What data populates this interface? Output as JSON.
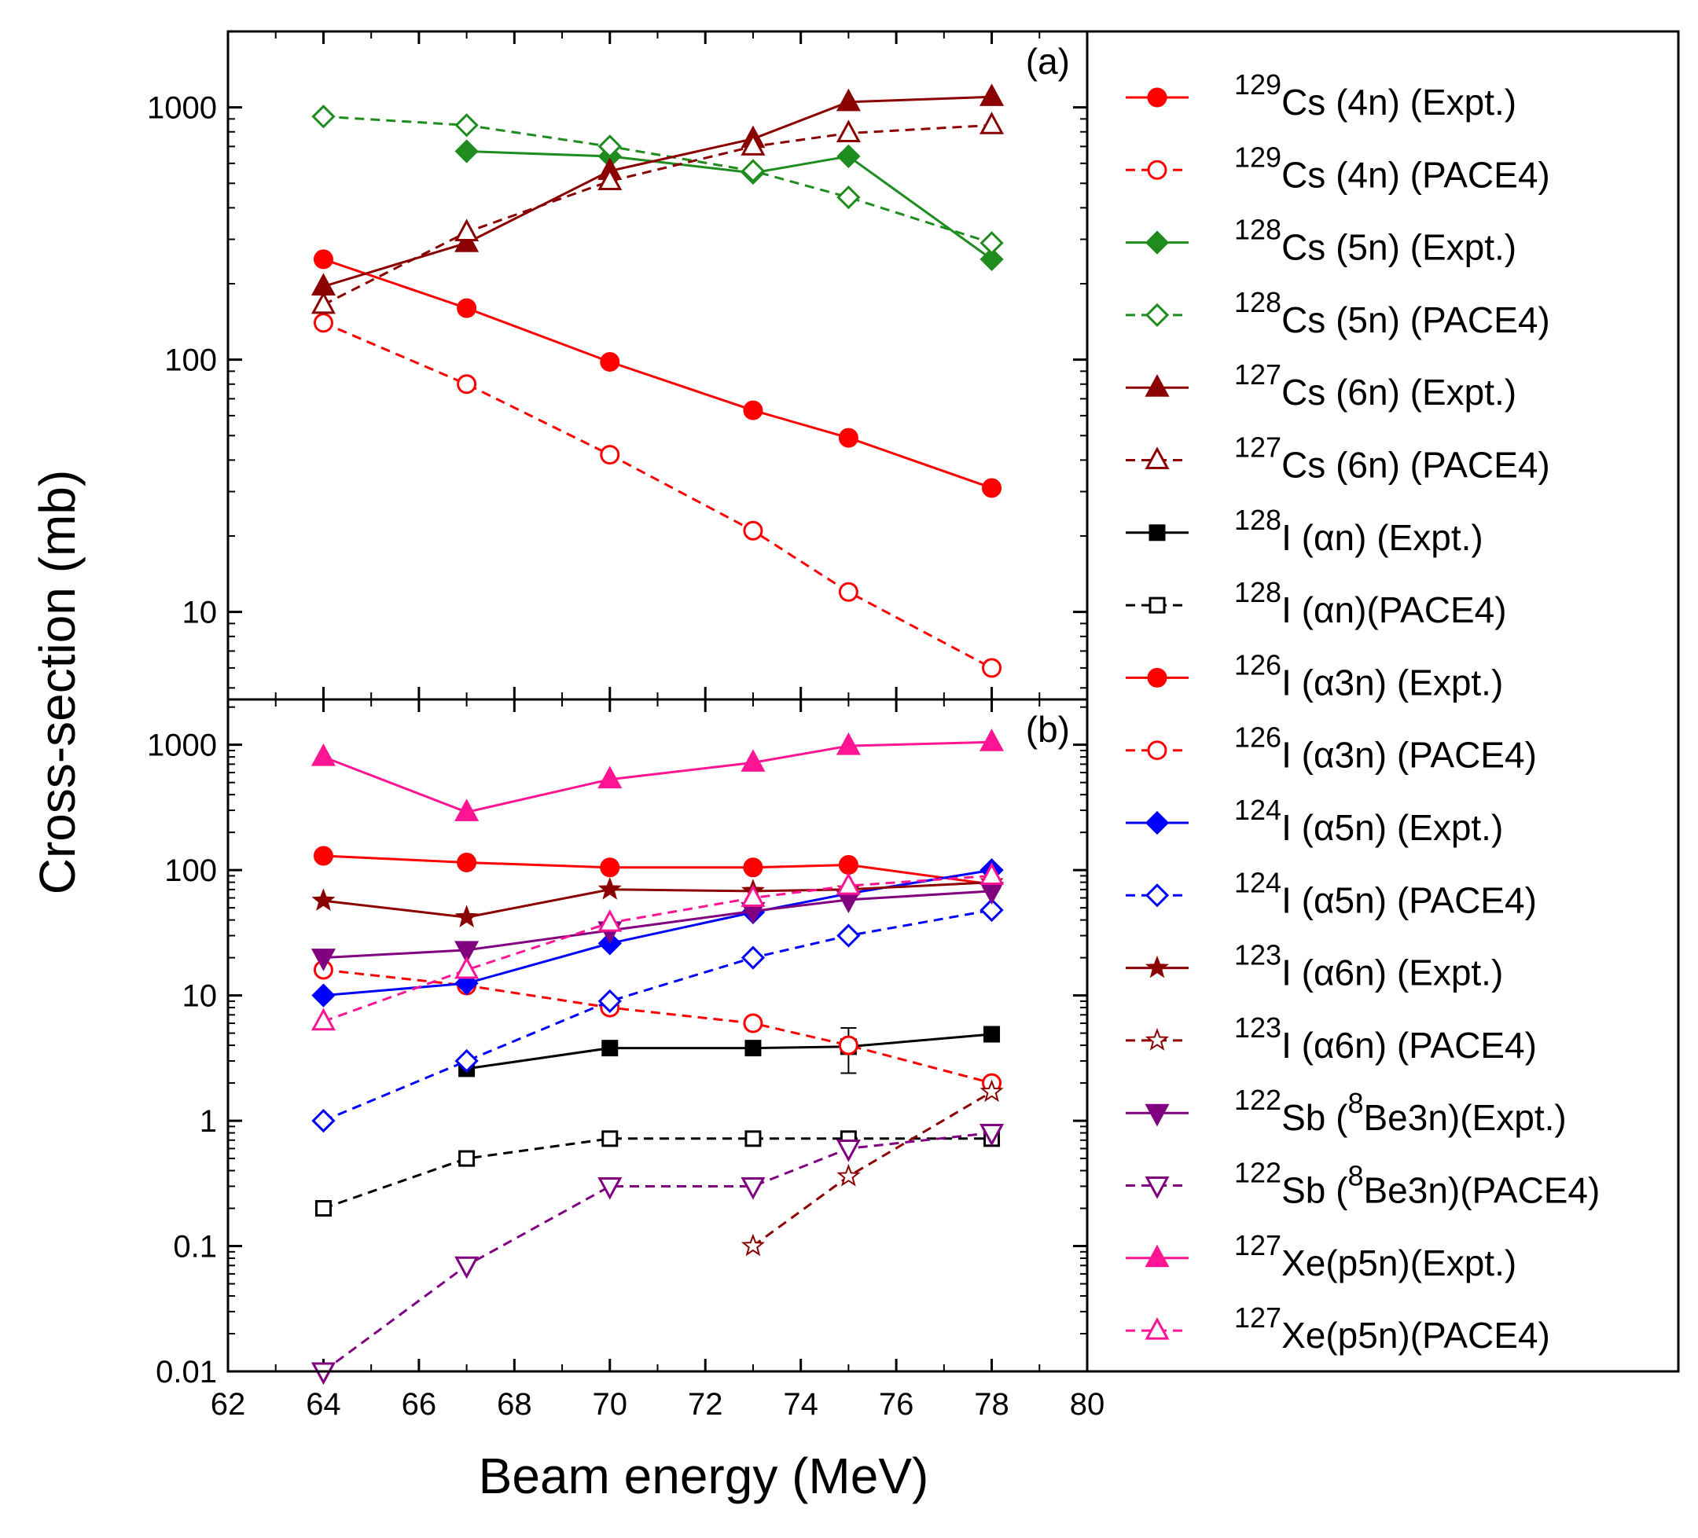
{
  "chart_data": {
    "type": "line",
    "xlabel": "Beam energy (MeV)",
    "ylabel": "Cross-section (mb)",
    "x_ticks": [
      "62",
      "64",
      "66",
      "68",
      "70",
      "72",
      "74",
      "76",
      "78",
      "80"
    ],
    "xlim": [
      62,
      80
    ],
    "panels": [
      {
        "label": "(a)",
        "yscale": "log",
        "ylim": [
          4.5,
          2000
        ],
        "y_ticks": [
          {
            "value": 10,
            "label": "10"
          },
          {
            "value": 100,
            "label": "100"
          },
          {
            "value": 1000,
            "label": "1000"
          }
        ],
        "series": [
          {
            "legend": 0,
            "points": [
              [
                64,
                250
              ],
              [
                67,
                160
              ],
              [
                70,
                98
              ],
              [
                73,
                63
              ],
              [
                75,
                49
              ],
              [
                78,
                31
              ]
            ]
          },
          {
            "legend": 1,
            "points": [
              [
                64,
                140
              ],
              [
                67,
                80
              ],
              [
                70,
                42
              ],
              [
                73,
                21
              ],
              [
                75,
                12
              ],
              [
                78,
                6
              ]
            ]
          },
          {
            "legend": 2,
            "points": [
              [
                67,
                670
              ],
              [
                70,
                640
              ],
              [
                73,
                550
              ],
              [
                75,
                640
              ],
              [
                78,
                250
              ]
            ]
          },
          {
            "legend": 3,
            "points": [
              [
                64,
                920
              ],
              [
                67,
                850
              ],
              [
                70,
                700
              ],
              [
                73,
                560
              ],
              [
                75,
                440
              ],
              [
                78,
                290
              ]
            ]
          },
          {
            "legend": 4,
            "points": [
              [
                64,
                195
              ],
              [
                67,
                290
              ],
              [
                70,
                560
              ],
              [
                73,
                750
              ],
              [
                75,
                1050
              ],
              [
                78,
                1100
              ]
            ]
          },
          {
            "legend": 5,
            "points": [
              [
                64,
                165
              ],
              [
                67,
                320
              ],
              [
                70,
                510
              ],
              [
                73,
                700
              ],
              [
                75,
                790
              ],
              [
                78,
                850
              ]
            ]
          }
        ]
      },
      {
        "label": "(b)",
        "yscale": "log",
        "ylim": [
          0.01,
          2300
        ],
        "y_ticks": [
          {
            "value": 0.01,
            "label": "0.01"
          },
          {
            "value": 0.1,
            "label": "0.1"
          },
          {
            "value": 1,
            "label": "1"
          },
          {
            "value": 10,
            "label": "10"
          },
          {
            "value": 100,
            "label": "100"
          },
          {
            "value": 1000,
            "label": "1000"
          }
        ],
        "series": [
          {
            "legend": 6,
            "points": [
              [
                67,
                2.6
              ],
              [
                70,
                3.8
              ],
              [
                73,
                3.8
              ],
              [
                75,
                3.9
              ],
              [
                78,
                4.9
              ]
            ],
            "errorbars": [
              [
                75,
                2.4,
                5.5
              ]
            ]
          },
          {
            "legend": 7,
            "points": [
              [
                64,
                0.2
              ],
              [
                67,
                0.5
              ],
              [
                70,
                0.72
              ],
              [
                73,
                0.72
              ],
              [
                75,
                0.72
              ],
              [
                78,
                0.72
              ]
            ]
          },
          {
            "legend": 8,
            "points": [
              [
                64,
                130
              ],
              [
                67,
                115
              ],
              [
                70,
                105
              ],
              [
                73,
                105
              ],
              [
                75,
                110
              ],
              [
                78,
                77
              ]
            ]
          },
          {
            "legend": 9,
            "points": [
              [
                64,
                16
              ],
              [
                67,
                12
              ],
              [
                70,
                8
              ],
              [
                73,
                6
              ],
              [
                75,
                4
              ],
              [
                78,
                2
              ]
            ]
          },
          {
            "legend": 10,
            "points": [
              [
                64,
                10
              ],
              [
                67,
                12.5
              ],
              [
                70,
                26
              ],
              [
                73,
                46
              ],
              [
                75,
                65
              ],
              [
                78,
                100
              ]
            ]
          },
          {
            "legend": 11,
            "points": [
              [
                64,
                1
              ],
              [
                67,
                3
              ],
              [
                70,
                9
              ],
              [
                73,
                20
              ],
              [
                75,
                30
              ],
              [
                78,
                48
              ]
            ]
          },
          {
            "legend": 12,
            "points": [
              [
                64,
                57
              ],
              [
                67,
                42
              ],
              [
                70,
                70
              ],
              [
                73,
                68
              ],
              [
                75,
                70
              ],
              [
                78,
                80
              ]
            ]
          },
          {
            "legend": 13,
            "points": [
              [
                73,
                0.1
              ],
              [
                75,
                0.36
              ],
              [
                78,
                1.7
              ]
            ]
          },
          {
            "legend": 14,
            "points": [
              [
                64,
                20
              ],
              [
                67,
                23
              ],
              [
                70,
                33
              ],
              [
                73,
                47
              ],
              [
                75,
                58
              ],
              [
                78,
                68
              ]
            ]
          },
          {
            "legend": 15,
            "points": [
              [
                64,
                0.01
              ],
              [
                67,
                0.07
              ],
              [
                70,
                0.3
              ],
              [
                73,
                0.3
              ],
              [
                75,
                0.6
              ],
              [
                78,
                0.8
              ]
            ]
          },
          {
            "legend": 16,
            "points": [
              [
                64,
                800
              ],
              [
                67,
                290
              ],
              [
                70,
                530
              ],
              [
                73,
                720
              ],
              [
                75,
                980
              ],
              [
                78,
                1050
              ]
            ]
          },
          {
            "legend": 17,
            "points": [
              [
                64,
                6.2
              ],
              [
                67,
                16
              ],
              [
                70,
                38
              ],
              [
                73,
                60
              ],
              [
                75,
                75
              ],
              [
                78,
                90
              ]
            ]
          }
        ]
      }
    ],
    "legend": [
      {
        "sup": "129",
        "text": "Cs (4n) (Expt.)",
        "color": "#ff0000",
        "marker": "circle",
        "filled": true,
        "dashed": false
      },
      {
        "sup": "129",
        "text": "Cs (4n) (PACE4)",
        "color": "#ff0000",
        "marker": "circle",
        "filled": false,
        "dashed": true
      },
      {
        "sup": "128",
        "text": "Cs (5n) (Expt.)",
        "color": "#1e8c1e",
        "marker": "diamond",
        "filled": true,
        "dashed": false
      },
      {
        "sup": "128",
        "text": "Cs (5n) (PACE4)",
        "color": "#1e8c1e",
        "marker": "diamond",
        "filled": false,
        "dashed": true
      },
      {
        "sup": "127",
        "text": "Cs (6n) (Expt.)",
        "color": "#8b0000",
        "marker": "triangle",
        "filled": true,
        "dashed": false
      },
      {
        "sup": "127",
        "text": "Cs (6n) (PACE4)",
        "color": "#8b0000",
        "marker": "triangle",
        "filled": false,
        "dashed": true
      },
      {
        "sup": "128",
        "text": "I (αn) (Expt.)",
        "color": "#000000",
        "marker": "square",
        "filled": true,
        "dashed": false
      },
      {
        "sup": "128",
        "text": "I (αn)(PACE4)",
        "color": "#000000",
        "marker": "square",
        "filled": false,
        "dashed": true
      },
      {
        "sup": "126",
        "text": "I (α3n) (Expt.)",
        "color": "#ff0000",
        "marker": "circle",
        "filled": true,
        "dashed": false
      },
      {
        "sup": "126",
        "text": "I (α3n) (PACE4)",
        "color": "#ff0000",
        "marker": "circle",
        "filled": false,
        "dashed": true
      },
      {
        "sup": "124",
        "text": "I (α5n) (Expt.)",
        "color": "#0000ff",
        "marker": "diamond",
        "filled": true,
        "dashed": false
      },
      {
        "sup": "124",
        "text": "I (α5n) (PACE4)",
        "color": "#0000ff",
        "marker": "diamond",
        "filled": false,
        "dashed": true
      },
      {
        "sup": "123",
        "text": "I (α6n) (Expt.)",
        "color": "#8b0000",
        "marker": "star",
        "filled": true,
        "dashed": false
      },
      {
        "sup": "123",
        "text": "I (α6n) (PACE4)",
        "color": "#8b0000",
        "marker": "star",
        "filled": false,
        "dashed": true
      },
      {
        "sup": "122",
        "text": "Sb (",
        "sup2": "8",
        "text2": "Be3n)(Expt.)",
        "color": "#800080",
        "marker": "triangle-down",
        "filled": true,
        "dashed": false
      },
      {
        "sup": "122",
        "text": "Sb (",
        "sup2": "8",
        "text2": "Be3n)(PACE4)",
        "color": "#800080",
        "marker": "triangle-down",
        "filled": false,
        "dashed": true
      },
      {
        "sup": "127",
        "text": "Xe(p5n)(Expt.)",
        "color": "#ff1493",
        "marker": "triangle",
        "filled": true,
        "dashed": false
      },
      {
        "sup": "127",
        "text": "Xe(p5n)(PACE4)",
        "color": "#ff1493",
        "marker": "triangle",
        "filled": false,
        "dashed": true
      }
    ]
  }
}
